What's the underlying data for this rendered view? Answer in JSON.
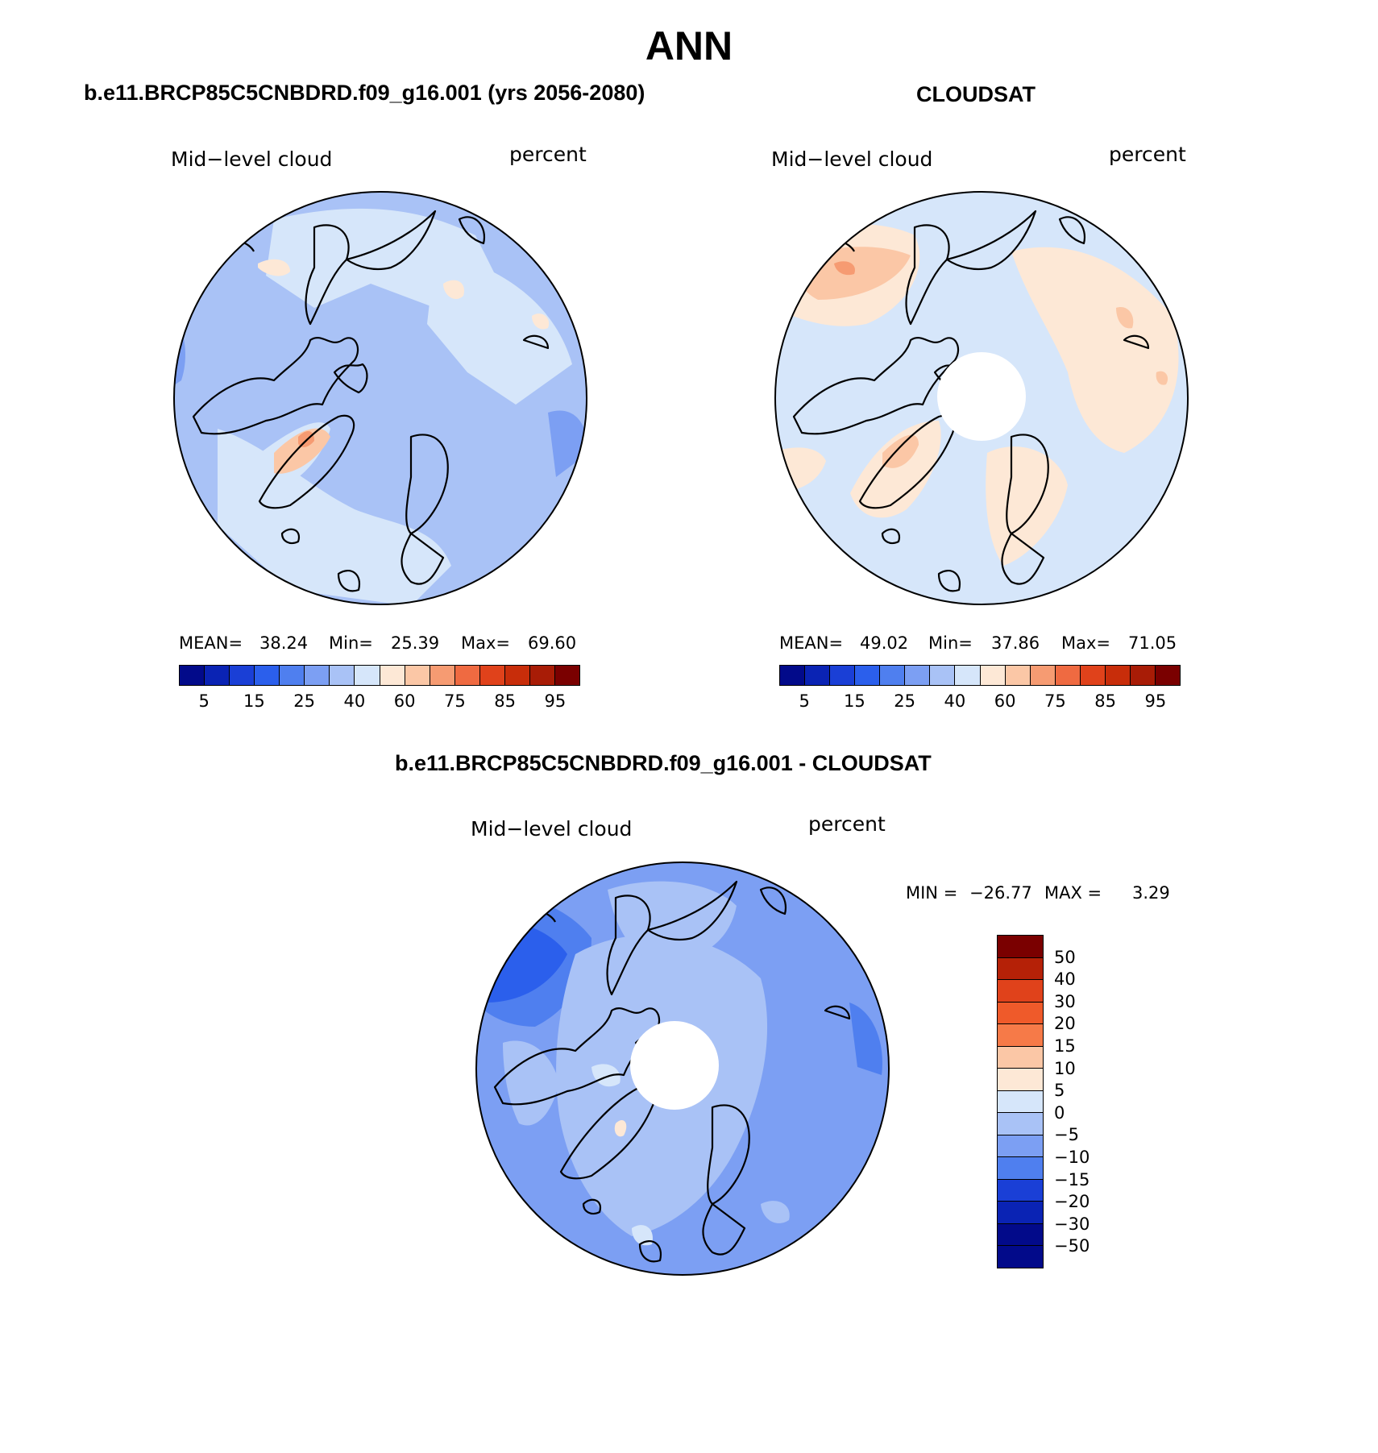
{
  "figure": {
    "main_title": "ANN"
  },
  "palettes": {
    "abs_colors": [
      "#020a8a",
      "#0a23b4",
      "#1a3fd6",
      "#2b5fec",
      "#4f7fef",
      "#7c9ff3",
      "#a9c2f6",
      "#d6e6fa",
      "#fde8d6",
      "#fbc7a6",
      "#f69b72",
      "#ef6a41",
      "#e0421b",
      "#c82d0a",
      "#a81c06",
      "#7a0000"
    ],
    "abs_labels": [
      "5",
      "15",
      "25",
      "40",
      "60",
      "75",
      "85",
      "95"
    ],
    "diff_colors": [
      "#7a0000",
      "#b52107",
      "#e0421b",
      "#ef5a2a",
      "#f67a48",
      "#fbc7a6",
      "#fde8d6",
      "#d6e6fa",
      "#a9c2f6",
      "#7c9ff3",
      "#4f7fef",
      "#1a3fd6",
      "#0a23b4",
      "#020a8a"
    ],
    "diff_labels": [
      "50",
      "40",
      "30",
      "20",
      "15",
      "10",
      "5",
      "0",
      "−5",
      "−10",
      "−15",
      "−20",
      "−30",
      "−50"
    ]
  },
  "panels": [
    {
      "title": "b.e11.BRCP85C5CNBDRD.f09_g16.001 (yrs 2056-2080)",
      "variable": "Mid−level cloud",
      "units": "percent",
      "stats": {
        "mean_label": "MEAN=",
        "mean": "38.24",
        "min_label": "Min=",
        "min": "25.39",
        "max_label": "Max=",
        "max": "69.60"
      }
    },
    {
      "title": "CLOUDSAT",
      "variable": "Mid−level cloud",
      "units": "percent",
      "stats": {
        "mean_label": "MEAN=",
        "mean": "49.02",
        "min_label": "Min=",
        "min": "37.86",
        "max_label": "Max=",
        "max": "71.05"
      }
    },
    {
      "title": "b.e11.BRCP85C5CNBDRD.f09_g16.001 - CLOUDSAT",
      "variable": "Mid−level cloud",
      "units": "percent",
      "stats": {
        "min_label": "MIN =",
        "min": "−26.77",
        "max_label": "MAX =",
        "max": "3.29"
      }
    }
  ]
}
